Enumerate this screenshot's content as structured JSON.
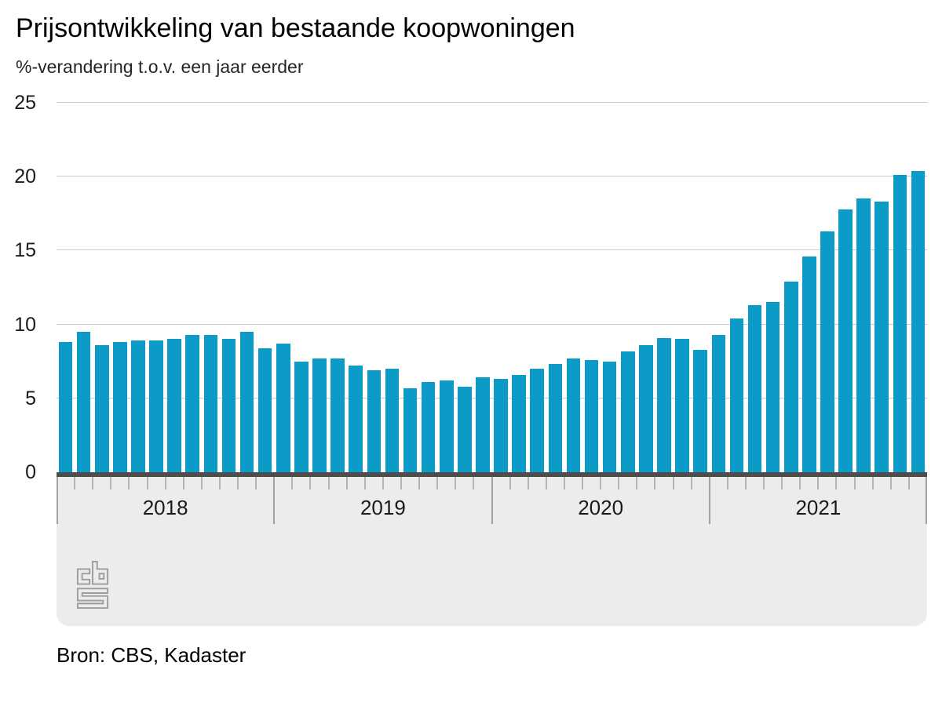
{
  "header": {
    "title": "Prijsontwikkeling van bestaande koopwoningen",
    "subtitle": "%-verandering t.o.v. een jaar eerder"
  },
  "source": {
    "label": "Bron: CBS, Kadaster"
  },
  "logo": {
    "name": "cbs-logo"
  },
  "colors": {
    "bar": "#0c9bc7",
    "baseline": "#4d4d4d",
    "gridline": "#cbcbcb",
    "band_background": "#ececec",
    "month_tick": "#b5b5b5",
    "year_tick": "#a3a3a3",
    "logo": "#9d9d9d",
    "title_text": "#000000",
    "axis_text": "#1a1a1a"
  },
  "chart_data": {
    "type": "bar",
    "title": "Prijsontwikkeling van bestaande koopwoningen",
    "subtitle": "%-verandering t.o.v. een jaar eerder",
    "unit": "%",
    "frequency": "monthly",
    "ylim": [
      0,
      25
    ],
    "yticks": [
      0,
      5,
      10,
      15,
      20,
      25
    ],
    "grid": true,
    "legend_position": "none",
    "x_year_labels": [
      "2018",
      "2019",
      "2020",
      "2021"
    ],
    "series": [
      {
        "name": "Prijsontwikkeling bestaande koopwoningen, %-verandering t.o.v. een jaar eerder",
        "values": [
          8.8,
          9.5,
          8.6,
          8.8,
          8.9,
          8.9,
          9.0,
          9.3,
          9.3,
          9.0,
          9.5,
          8.4,
          8.7,
          7.5,
          7.7,
          7.7,
          7.2,
          6.9,
          7.0,
          5.7,
          6.1,
          6.2,
          5.8,
          6.4,
          6.3,
          6.6,
          7.0,
          7.3,
          7.7,
          7.6,
          7.5,
          8.2,
          8.6,
          9.1,
          9.0,
          8.3,
          9.3,
          10.4,
          11.3,
          11.5,
          12.9,
          14.6,
          16.3,
          17.8,
          18.5,
          18.3,
          20.1,
          20.4
        ]
      }
    ],
    "source": "Bron: CBS, Kadaster"
  }
}
